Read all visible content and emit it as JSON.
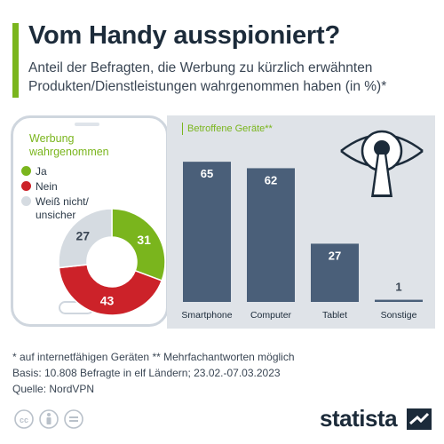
{
  "title": "Vom Handy ausspioniert?",
  "subtitle": "Anteil der Befragten, die Werbung zu kürzlich erwähnten Produkten/Dienstleistungen wahrgenommen haben (in %)*",
  "colors": {
    "accent": "#7ab51d",
    "ja": "#7ab51d",
    "nein": "#cc2229",
    "unsure": "#d5dbe1",
    "bar": "#4a5f79",
    "panel": "#dfe3e8"
  },
  "chart_data": [
    {
      "type": "pie",
      "title": "Werbung wahrgenommen",
      "categories": [
        "Ja",
        "Nein",
        "Weiß nicht/ unsicher"
      ],
      "values": [
        31,
        43,
        27
      ],
      "legend": "top-left"
    },
    {
      "type": "bar",
      "title": "Betroffene Geräte**",
      "categories": [
        "Smartphone",
        "Computer",
        "Tablet",
        "Sonstige"
      ],
      "values": [
        65,
        62,
        27,
        1
      ],
      "ylim": [
        0,
        70
      ]
    }
  ],
  "footnotes": {
    "line1": "*  auf internetfähigen Geräten    ** Mehrfachantworten möglich",
    "line2": "Basis: 10.808 Befragte in elf Ländern; 23.02.-07.03.2023",
    "line3": "Quelle: NordVPN"
  },
  "brand": "statista",
  "icons": [
    "cc-icon",
    "person-icon",
    "equals-icon",
    "eye-keyhole-icon",
    "statista-logo-icon"
  ]
}
